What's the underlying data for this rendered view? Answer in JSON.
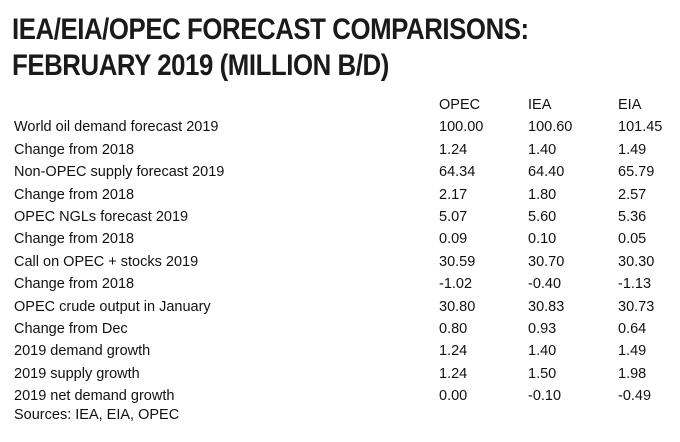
{
  "chart_data": {
    "type": "table",
    "title_lines": [
      "IEA/EIA/OPEC FORECAST COMPARISONS:",
      "FEBRUARY 2019 (MILLION B/D)"
    ],
    "columns": [
      "OPEC",
      "IEA",
      "EIA"
    ],
    "rows": [
      {
        "label": "World oil demand forecast 2019",
        "values": [
          "100.00",
          "100.60",
          "101.45"
        ]
      },
      {
        "label": "Change from 2018",
        "values": [
          "1.24",
          "1.40",
          "1.49"
        ]
      },
      {
        "label": "Non-OPEC supply forecast 2019",
        "values": [
          "64.34",
          "64.40",
          "65.79"
        ]
      },
      {
        "label": "Change from 2018",
        "values": [
          "2.17",
          "1.80",
          "2.57"
        ]
      },
      {
        "label": "OPEC NGLs forecast 2019",
        "values": [
          "5.07",
          "5.60",
          "5.36"
        ]
      },
      {
        "label": "Change from 2018",
        "values": [
          "0.09",
          "0.10",
          "0.05"
        ]
      },
      {
        "label": "Call on OPEC + stocks 2019",
        "values": [
          "30.59",
          "30.70",
          "30.30"
        ]
      },
      {
        "label": "Change from 2018",
        "values": [
          "-1.02",
          "-0.40",
          "-1.13"
        ]
      },
      {
        "label": "OPEC crude output in January",
        "values": [
          "30.80",
          "30.83",
          "30.73"
        ]
      },
      {
        "label": "Change from Dec",
        "values": [
          "0.80",
          "0.93",
          "0.64"
        ]
      },
      {
        "label": "2019 demand growth",
        "values": [
          "1.24",
          "1.40",
          "1.49"
        ]
      },
      {
        "label": "2019 supply growth",
        "values": [
          "1.24",
          "1.50",
          "1.98"
        ]
      },
      {
        "label": "2019 net demand growth",
        "values": [
          "0.00",
          "-0.10",
          "-0.49"
        ]
      }
    ],
    "source": "Sources: IEA, EIA, OPEC"
  }
}
